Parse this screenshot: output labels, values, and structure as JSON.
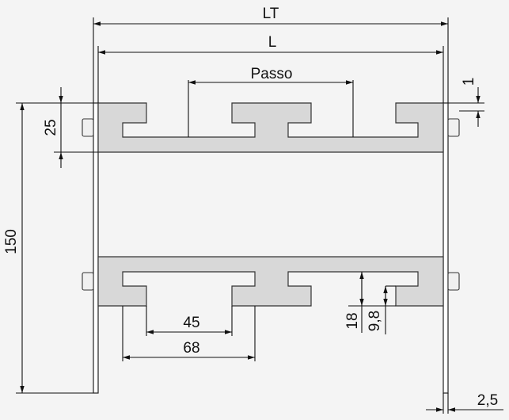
{
  "dimensions": {
    "total_length": "LT",
    "length": "L",
    "pitch": "Passo",
    "top_gap": "1",
    "profile_height": "25",
    "overall_height": "150",
    "inner_width": "45",
    "outer_width": "68",
    "flange_height": "18",
    "slot_depth": "9,8",
    "plate_thickness": "2,5"
  },
  "colors": {
    "background": "#f4f4f4",
    "profile_fill": "#d8d8d8",
    "line": "#111111"
  }
}
